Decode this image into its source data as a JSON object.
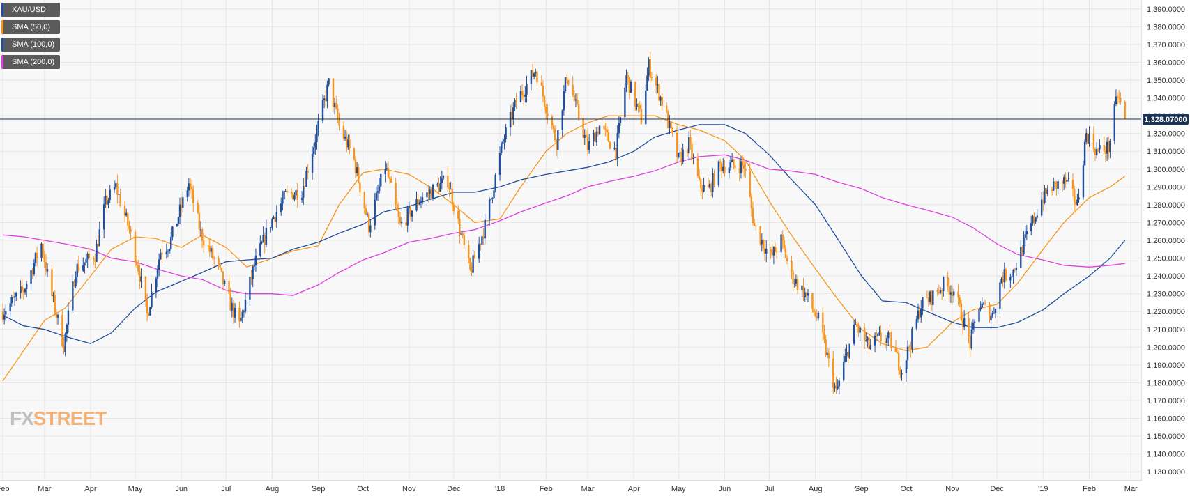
{
  "legend": [
    {
      "label": "XAU/USD",
      "color": "#1f4e9c"
    },
    {
      "label": "SMA (50,0)",
      "color": "#f7941d"
    },
    {
      "label": "SMA (100,0)",
      "color": "#1f4e9c"
    },
    {
      "label": "SMA (200,0)",
      "color": "#e040e0"
    }
  ],
  "brand": {
    "fx": "FX",
    "rest": "STREET"
  },
  "price_tag": "1,328.07000",
  "colors": {
    "bull_candle": "#1f4e9c",
    "bear_candle": "#f7941d",
    "sma50": "#f7941d",
    "sma100": "#1f4e9c",
    "sma200": "#e040e0",
    "price_line": "#1c3353",
    "grid": "#e6e6e6",
    "plot_bg": "#f8f8f8"
  },
  "chart_data": {
    "type": "line",
    "title": "",
    "symbol": "XAU/USD",
    "timeframe": "daily",
    "ylim": [
      1125,
      1395
    ],
    "y_ticks": [
      1130,
      1140,
      1150,
      1160,
      1170,
      1180,
      1190,
      1200,
      1210,
      1220,
      1230,
      1240,
      1250,
      1260,
      1270,
      1280,
      1290,
      1300,
      1310,
      1320,
      1330,
      1340,
      1350,
      1360,
      1370,
      1380,
      1390
    ],
    "y_tick_labels": [
      "1,130.0000",
      "1,140.0000",
      "1,150.0000",
      "1,160.0000",
      "1,170.0000",
      "1,180.0000",
      "1,190.0000",
      "1,200.0000",
      "1,210.0000",
      "1,220.0000",
      "1,230.0000",
      "1,240.0000",
      "1,250.0000",
      "1,260.0000",
      "1,270.0000",
      "1,280.0000",
      "1,290.0000",
      "1,300.0000",
      "1,310.0000",
      "1,320.0000",
      "1,330.0000",
      "1,340.0000",
      "1,350.0000",
      "1,360.0000",
      "1,370.0000",
      "1,380.0000",
      "1,390.0000"
    ],
    "x_range": [
      "2017-02-01",
      "2019-02-27"
    ],
    "x_ticks": [
      {
        "label": "Feb",
        "date": "2017-02-01"
      },
      {
        "label": "Mar",
        "date": "2017-03-01"
      },
      {
        "label": "Apr",
        "date": "2017-04-01"
      },
      {
        "label": "May",
        "date": "2017-05-01"
      },
      {
        "label": "Jun",
        "date": "2017-06-01"
      },
      {
        "label": "Jul",
        "date": "2017-07-01"
      },
      {
        "label": "Aug",
        "date": "2017-08-01"
      },
      {
        "label": "Sep",
        "date": "2017-09-01"
      },
      {
        "label": "Oct",
        "date": "2017-10-01"
      },
      {
        "label": "Nov",
        "date": "2017-11-01"
      },
      {
        "label": "Dec",
        "date": "2017-12-01"
      },
      {
        "label": "'18",
        "date": "2018-01-01"
      },
      {
        "label": "Feb",
        "date": "2018-02-01"
      },
      {
        "label": "Mar",
        "date": "2018-03-01"
      },
      {
        "label": "Apr",
        "date": "2018-04-01"
      },
      {
        "label": "May",
        "date": "2018-05-01"
      },
      {
        "label": "Jun",
        "date": "2018-06-01"
      },
      {
        "label": "Jul",
        "date": "2018-07-01"
      },
      {
        "label": "Aug",
        "date": "2018-08-01"
      },
      {
        "label": "Sep",
        "date": "2018-09-01"
      },
      {
        "label": "Oct",
        "date": "2018-10-01"
      },
      {
        "label": "Nov",
        "date": "2018-11-01"
      },
      {
        "label": "Dec",
        "date": "2018-12-01"
      },
      {
        "label": "'19",
        "date": "2019-01-01"
      },
      {
        "label": "Feb",
        "date": "2019-02-01"
      },
      {
        "label": "Mar",
        "date": "2019-03-01"
      }
    ],
    "last_price": 1328.07,
    "price_anchors": [
      [
        "2017-02-01",
        1220
      ],
      [
        "2017-02-15",
        1232
      ],
      [
        "2017-02-27",
        1258
      ],
      [
        "2017-03-05",
        1232
      ],
      [
        "2017-03-14",
        1201
      ],
      [
        "2017-03-22",
        1244
      ],
      [
        "2017-04-04",
        1252
      ],
      [
        "2017-04-11",
        1281
      ],
      [
        "2017-04-18",
        1290
      ],
      [
        "2017-04-27",
        1266
      ],
      [
        "2017-05-03",
        1245
      ],
      [
        "2017-05-09",
        1218
      ],
      [
        "2017-05-18",
        1254
      ],
      [
        "2017-05-24",
        1258
      ],
      [
        "2017-06-06",
        1292
      ],
      [
        "2017-06-14",
        1264
      ],
      [
        "2017-06-26",
        1244
      ],
      [
        "2017-07-03",
        1226
      ],
      [
        "2017-07-10",
        1212
      ],
      [
        "2017-07-20",
        1246
      ],
      [
        "2017-07-31",
        1270
      ],
      [
        "2017-08-10",
        1285
      ],
      [
        "2017-08-21",
        1288
      ],
      [
        "2017-08-29",
        1314
      ],
      [
        "2017-09-08",
        1348
      ],
      [
        "2017-09-15",
        1324
      ],
      [
        "2017-09-25",
        1305
      ],
      [
        "2017-10-05",
        1268
      ],
      [
        "2017-10-16",
        1302
      ],
      [
        "2017-10-26",
        1268
      ],
      [
        "2017-11-08",
        1283
      ],
      [
        "2017-11-27",
        1294
      ],
      [
        "2017-12-12",
        1242
      ],
      [
        "2017-12-22",
        1268
      ],
      [
        "2018-01-03",
        1315
      ],
      [
        "2018-01-12",
        1338
      ],
      [
        "2018-01-25",
        1356
      ],
      [
        "2018-02-08",
        1315
      ],
      [
        "2018-02-15",
        1353
      ],
      [
        "2018-03-01",
        1312
      ],
      [
        "2018-03-09",
        1324
      ],
      [
        "2018-03-20",
        1310
      ],
      [
        "2018-03-27",
        1352
      ],
      [
        "2018-04-06",
        1328
      ],
      [
        "2018-04-11",
        1358
      ],
      [
        "2018-04-20",
        1338
      ],
      [
        "2018-05-01",
        1305
      ],
      [
        "2018-05-08",
        1314
      ],
      [
        "2018-05-15",
        1291
      ],
      [
        "2018-05-21",
        1288
      ],
      [
        "2018-05-29",
        1302
      ],
      [
        "2018-06-14",
        1302
      ],
      [
        "2018-06-21",
        1268
      ],
      [
        "2018-07-02",
        1250
      ],
      [
        "2018-07-09",
        1260
      ],
      [
        "2018-07-16",
        1240
      ],
      [
        "2018-07-25",
        1230
      ],
      [
        "2018-08-03",
        1215
      ],
      [
        "2018-08-15",
        1174
      ],
      [
        "2018-08-20",
        1190
      ],
      [
        "2018-08-28",
        1212
      ],
      [
        "2018-09-06",
        1200
      ],
      [
        "2018-09-13",
        1205
      ],
      [
        "2018-09-20",
        1204
      ],
      [
        "2018-09-28",
        1187
      ],
      [
        "2018-10-04",
        1203
      ],
      [
        "2018-10-11",
        1224
      ],
      [
        "2018-10-18",
        1228
      ],
      [
        "2018-10-26",
        1235
      ],
      [
        "2018-11-02",
        1232
      ],
      [
        "2018-11-13",
        1202
      ],
      [
        "2018-11-19",
        1224
      ],
      [
        "2018-11-28",
        1218
      ],
      [
        "2018-12-04",
        1239
      ],
      [
        "2018-12-12",
        1243
      ],
      [
        "2018-12-20",
        1260
      ],
      [
        "2018-12-31",
        1283
      ],
      [
        "2019-01-07",
        1290
      ],
      [
        "2019-01-16",
        1293
      ],
      [
        "2019-01-24",
        1280
      ],
      [
        "2019-01-30",
        1320
      ],
      [
        "2019-02-06",
        1310
      ],
      [
        "2019-02-14",
        1312
      ],
      [
        "2019-02-20",
        1342
      ],
      [
        "2019-02-25",
        1328
      ]
    ],
    "series": [
      {
        "name": "SMA (50,0)",
        "points": [
          [
            "2017-02-01",
            1181
          ],
          [
            "2017-02-15",
            1198
          ],
          [
            "2017-03-01",
            1215
          ],
          [
            "2017-03-15",
            1222
          ],
          [
            "2017-04-01",
            1240
          ],
          [
            "2017-04-15",
            1255
          ],
          [
            "2017-05-01",
            1262
          ],
          [
            "2017-05-15",
            1261
          ],
          [
            "2017-06-01",
            1256
          ],
          [
            "2017-06-15",
            1263
          ],
          [
            "2017-07-01",
            1256
          ],
          [
            "2017-07-15",
            1245
          ],
          [
            "2017-08-01",
            1250
          ],
          [
            "2017-08-15",
            1254
          ],
          [
            "2017-09-01",
            1257
          ],
          [
            "2017-09-15",
            1280
          ],
          [
            "2017-10-01",
            1298
          ],
          [
            "2017-10-15",
            1300
          ],
          [
            "2017-11-01",
            1297
          ],
          [
            "2017-11-15",
            1290
          ],
          [
            "2017-12-01",
            1280
          ],
          [
            "2017-12-15",
            1270
          ],
          [
            "2018-01-01",
            1272
          ],
          [
            "2018-01-15",
            1290
          ],
          [
            "2018-02-01",
            1310
          ],
          [
            "2018-02-15",
            1320
          ],
          [
            "2018-03-01",
            1326
          ],
          [
            "2018-03-15",
            1330
          ],
          [
            "2018-04-01",
            1330
          ],
          [
            "2018-04-15",
            1330
          ],
          [
            "2018-05-01",
            1325
          ],
          [
            "2018-05-15",
            1322
          ],
          [
            "2018-06-01",
            1316
          ],
          [
            "2018-06-15",
            1305
          ],
          [
            "2018-07-01",
            1282
          ],
          [
            "2018-07-15",
            1264
          ],
          [
            "2018-08-01",
            1244
          ],
          [
            "2018-08-15",
            1228
          ],
          [
            "2018-09-01",
            1210
          ],
          [
            "2018-09-15",
            1202
          ],
          [
            "2018-10-01",
            1198
          ],
          [
            "2018-10-15",
            1200
          ],
          [
            "2018-11-01",
            1214
          ],
          [
            "2018-11-15",
            1221
          ],
          [
            "2018-12-01",
            1224
          ],
          [
            "2018-12-15",
            1236
          ],
          [
            "2019-01-01",
            1255
          ],
          [
            "2019-01-15",
            1270
          ],
          [
            "2019-02-01",
            1284
          ],
          [
            "2019-02-15",
            1290
          ],
          [
            "2019-02-25",
            1296
          ]
        ]
      },
      {
        "name": "SMA (100,0)",
        "points": [
          [
            "2017-02-01",
            1218
          ],
          [
            "2017-02-15",
            1212
          ],
          [
            "2017-03-01",
            1210
          ],
          [
            "2017-03-15",
            1206
          ],
          [
            "2017-04-01",
            1202
          ],
          [
            "2017-04-15",
            1208
          ],
          [
            "2017-05-01",
            1222
          ],
          [
            "2017-05-15",
            1231
          ],
          [
            "2017-06-01",
            1237
          ],
          [
            "2017-06-15",
            1242
          ],
          [
            "2017-07-01",
            1248
          ],
          [
            "2017-07-15",
            1249
          ],
          [
            "2017-08-01",
            1250
          ],
          [
            "2017-08-15",
            1255
          ],
          [
            "2017-09-01",
            1259
          ],
          [
            "2017-09-15",
            1264
          ],
          [
            "2017-10-01",
            1269
          ],
          [
            "2017-10-15",
            1276
          ],
          [
            "2017-11-01",
            1279
          ],
          [
            "2017-11-15",
            1283
          ],
          [
            "2017-12-01",
            1287
          ],
          [
            "2017-12-15",
            1287
          ],
          [
            "2018-01-01",
            1290
          ],
          [
            "2018-01-15",
            1294
          ],
          [
            "2018-02-01",
            1297
          ],
          [
            "2018-02-15",
            1299
          ],
          [
            "2018-03-01",
            1301
          ],
          [
            "2018-03-15",
            1304
          ],
          [
            "2018-04-01",
            1310
          ],
          [
            "2018-04-15",
            1318
          ],
          [
            "2018-05-01",
            1322
          ],
          [
            "2018-05-15",
            1325
          ],
          [
            "2018-06-01",
            1325
          ],
          [
            "2018-06-15",
            1320
          ],
          [
            "2018-07-01",
            1308
          ],
          [
            "2018-07-15",
            1295
          ],
          [
            "2018-08-01",
            1280
          ],
          [
            "2018-08-15",
            1262
          ],
          [
            "2018-09-01",
            1240
          ],
          [
            "2018-09-15",
            1226
          ],
          [
            "2018-10-01",
            1225
          ],
          [
            "2018-10-15",
            1220
          ],
          [
            "2018-11-01",
            1214
          ],
          [
            "2018-11-15",
            1211
          ],
          [
            "2018-12-01",
            1211
          ],
          [
            "2018-12-15",
            1214
          ],
          [
            "2019-01-01",
            1221
          ],
          [
            "2019-01-15",
            1230
          ],
          [
            "2019-02-01",
            1240
          ],
          [
            "2019-02-15",
            1250
          ],
          [
            "2019-02-25",
            1260
          ]
        ]
      },
      {
        "name": "SMA (200,0)",
        "points": [
          [
            "2017-02-01",
            1263
          ],
          [
            "2017-02-15",
            1262
          ],
          [
            "2017-03-01",
            1260
          ],
          [
            "2017-03-15",
            1258
          ],
          [
            "2017-04-01",
            1255
          ],
          [
            "2017-04-15",
            1250
          ],
          [
            "2017-05-01",
            1248
          ],
          [
            "2017-05-15",
            1244
          ],
          [
            "2017-06-01",
            1240
          ],
          [
            "2017-06-15",
            1238
          ],
          [
            "2017-07-01",
            1232
          ],
          [
            "2017-07-15",
            1230
          ],
          [
            "2017-08-01",
            1230
          ],
          [
            "2017-08-15",
            1229
          ],
          [
            "2017-09-01",
            1235
          ],
          [
            "2017-09-15",
            1242
          ],
          [
            "2017-10-01",
            1249
          ],
          [
            "2017-10-15",
            1253
          ],
          [
            "2017-11-01",
            1259
          ],
          [
            "2017-11-15",
            1261
          ],
          [
            "2017-12-01",
            1264
          ],
          [
            "2017-12-15",
            1266
          ],
          [
            "2018-01-01",
            1271
          ],
          [
            "2018-01-15",
            1276
          ],
          [
            "2018-02-01",
            1281
          ],
          [
            "2018-02-15",
            1285
          ],
          [
            "2018-03-01",
            1290
          ],
          [
            "2018-03-15",
            1293
          ],
          [
            "2018-04-01",
            1296
          ],
          [
            "2018-04-15",
            1299
          ],
          [
            "2018-05-01",
            1304
          ],
          [
            "2018-05-15",
            1307
          ],
          [
            "2018-06-01",
            1308
          ],
          [
            "2018-06-15",
            1305
          ],
          [
            "2018-07-01",
            1300
          ],
          [
            "2018-07-15",
            1299
          ],
          [
            "2018-08-01",
            1297
          ],
          [
            "2018-08-15",
            1293
          ],
          [
            "2018-09-01",
            1289
          ],
          [
            "2018-09-15",
            1284
          ],
          [
            "2018-10-01",
            1280
          ],
          [
            "2018-10-15",
            1277
          ],
          [
            "2018-11-01",
            1273
          ],
          [
            "2018-11-15",
            1267
          ],
          [
            "2018-12-01",
            1258
          ],
          [
            "2018-12-15",
            1252
          ],
          [
            "2019-01-01",
            1249
          ],
          [
            "2019-01-15",
            1246
          ],
          [
            "2019-02-01",
            1245
          ],
          [
            "2019-02-15",
            1246
          ],
          [
            "2019-02-25",
            1247
          ]
        ]
      }
    ]
  }
}
